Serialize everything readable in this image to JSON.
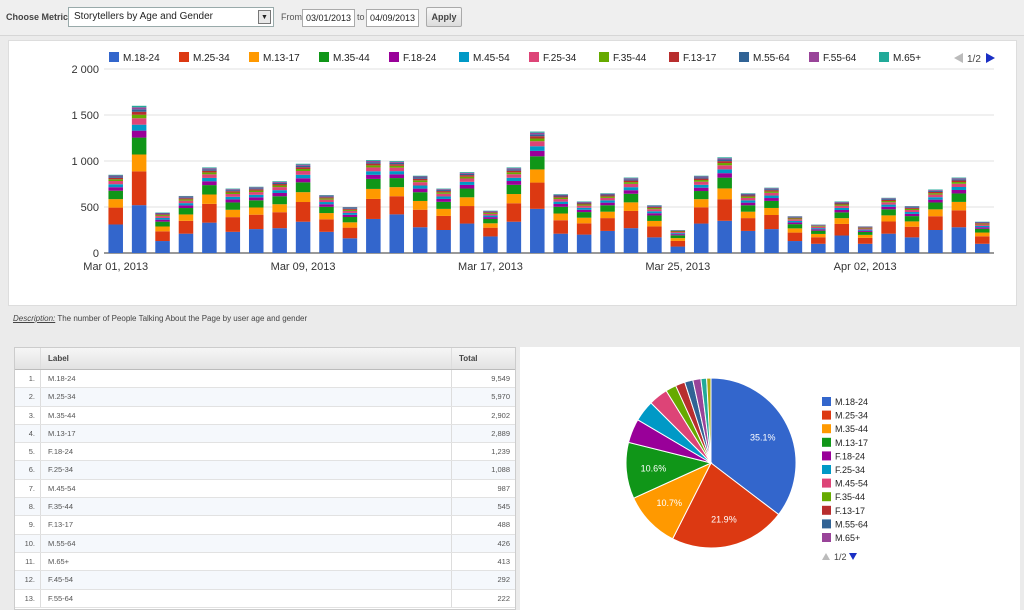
{
  "toolbar": {
    "choose_metric_label": "Choose Metric:",
    "metric_value": "Storytellers by Age and Gender",
    "from_label": "From",
    "from_date": "03/01/2013",
    "to_label": "to",
    "to_date": "04/09/2013",
    "apply_label": "Apply"
  },
  "legend_pager": "1/2",
  "pie_pager": "1/2",
  "description": {
    "key": "Description:",
    "text": "The number of People Talking About the Page by user age and gender"
  },
  "table": {
    "headers": [
      "Label",
      "Total"
    ],
    "rows": [
      {
        "num": "1.",
        "label": "M.18-24",
        "total": "9,549"
      },
      {
        "num": "2.",
        "label": "M.25-34",
        "total": "5,970"
      },
      {
        "num": "3.",
        "label": "M.35-44",
        "total": "2,902"
      },
      {
        "num": "4.",
        "label": "M.13-17",
        "total": "2,889"
      },
      {
        "num": "5.",
        "label": "F.18-24",
        "total": "1,239"
      },
      {
        "num": "6.",
        "label": "F.25-34",
        "total": "1,088"
      },
      {
        "num": "7.",
        "label": "M.45-54",
        "total": "987"
      },
      {
        "num": "8.",
        "label": "F.35-44",
        "total": "545"
      },
      {
        "num": "9.",
        "label": "F.13-17",
        "total": "488"
      },
      {
        "num": "10.",
        "label": "M.55-64",
        "total": "426"
      },
      {
        "num": "11.",
        "label": "M.65+",
        "total": "413"
      },
      {
        "num": "12.",
        "label": "F.45-54",
        "total": "292"
      },
      {
        "num": "13.",
        "label": "F.55-64",
        "total": "222"
      }
    ]
  },
  "chart_data": [
    {
      "type": "bar",
      "stacked": true,
      "ylim": [
        0,
        2000
      ],
      "yticks": [
        0,
        500,
        1000,
        1500,
        2000
      ],
      "ytick_labels": [
        "0",
        "500",
        "1 000",
        "1 500",
        "2 000"
      ],
      "xtick_labels": [
        {
          "index": 0,
          "label": "Mar 01, 2013"
        },
        {
          "index": 8,
          "label": "Mar 09, 2013"
        },
        {
          "index": 16,
          "label": "Mar 17, 2013"
        },
        {
          "index": 24,
          "label": "Mar 25, 2013"
        },
        {
          "index": 32,
          "label": "Apr 02, 2013"
        }
      ],
      "grid": true,
      "legend": "top",
      "series": [
        {
          "name": "M.18-24",
          "color": "#3366cc"
        },
        {
          "name": "M.25-34",
          "color": "#dc3912"
        },
        {
          "name": "M.13-17",
          "color": "#ff9900"
        },
        {
          "name": "M.35-44",
          "color": "#109618"
        },
        {
          "name": "F.18-24",
          "color": "#990099"
        },
        {
          "name": "M.45-54",
          "color": "#0099c6"
        },
        {
          "name": "F.25-34",
          "color": "#dd4477"
        },
        {
          "name": "F.35-44",
          "color": "#66aa00"
        },
        {
          "name": "F.13-17",
          "color": "#b82e2e"
        },
        {
          "name": "M.55-64",
          "color": "#316395"
        },
        {
          "name": "F.55-64",
          "color": "#994499"
        },
        {
          "name": "M.65+",
          "color": "#22aa99"
        }
      ],
      "daily_totals": [
        850,
        1600,
        440,
        620,
        930,
        700,
        720,
        780,
        970,
        630,
        500,
        1010,
        1000,
        840,
        700,
        880,
        460,
        930,
        1320,
        640,
        560,
        650,
        820,
        520,
        250,
        840,
        1040,
        650,
        710,
        400,
        310,
        560,
        290,
        600,
        510,
        690,
        820,
        340
      ],
      "daily_m1824": [
        310,
        520,
        130,
        210,
        330,
        230,
        260,
        270,
        340,
        230,
        160,
        370,
        420,
        280,
        250,
        320,
        180,
        340,
        480,
        210,
        200,
        240,
        270,
        170,
        70,
        320,
        350,
        240,
        260,
        130,
        100,
        190,
        100,
        210,
        170,
        250,
        280,
        100
      ]
    },
    {
      "type": "pie",
      "legend": "right",
      "slices": [
        {
          "label": "M.18-24",
          "value": 9549,
          "color": "#3366cc",
          "pct_label": "35.1%"
        },
        {
          "label": "M.25-34",
          "value": 5970,
          "color": "#dc3912",
          "pct_label": "21.9%"
        },
        {
          "label": "M.35-44",
          "value": 2902,
          "color": "#ff9900",
          "pct_label": "10.7%"
        },
        {
          "label": "M.13-17",
          "value": 2889,
          "color": "#109618",
          "pct_label": "10.6%"
        },
        {
          "label": "F.18-24",
          "value": 1239,
          "color": "#990099",
          "pct_label": ""
        },
        {
          "label": "F.25-34",
          "value": 1088,
          "color": "#0099c6",
          "pct_label": ""
        },
        {
          "label": "M.45-54",
          "value": 987,
          "color": "#dd4477",
          "pct_label": ""
        },
        {
          "label": "F.35-44",
          "value": 545,
          "color": "#66aa00",
          "pct_label": ""
        },
        {
          "label": "F.13-17",
          "value": 488,
          "color": "#b82e2e",
          "pct_label": ""
        },
        {
          "label": "M.55-64",
          "value": 426,
          "color": "#316395",
          "pct_label": ""
        },
        {
          "label": "M.65+",
          "value": 413,
          "color": "#994499",
          "pct_label": ""
        },
        {
          "label": "F.45-54",
          "value": 292,
          "color": "#22aa99",
          "pct_label": ""
        },
        {
          "label": "F.55-64",
          "value": 222,
          "color": "#aaaa11",
          "pct_label": ""
        }
      ],
      "legend_visible": [
        "M.18-24",
        "M.25-34",
        "M.35-44",
        "M.13-17",
        "F.18-24",
        "F.25-34",
        "M.45-54",
        "F.35-44",
        "F.13-17",
        "M.55-64",
        "M.65+"
      ]
    }
  ]
}
